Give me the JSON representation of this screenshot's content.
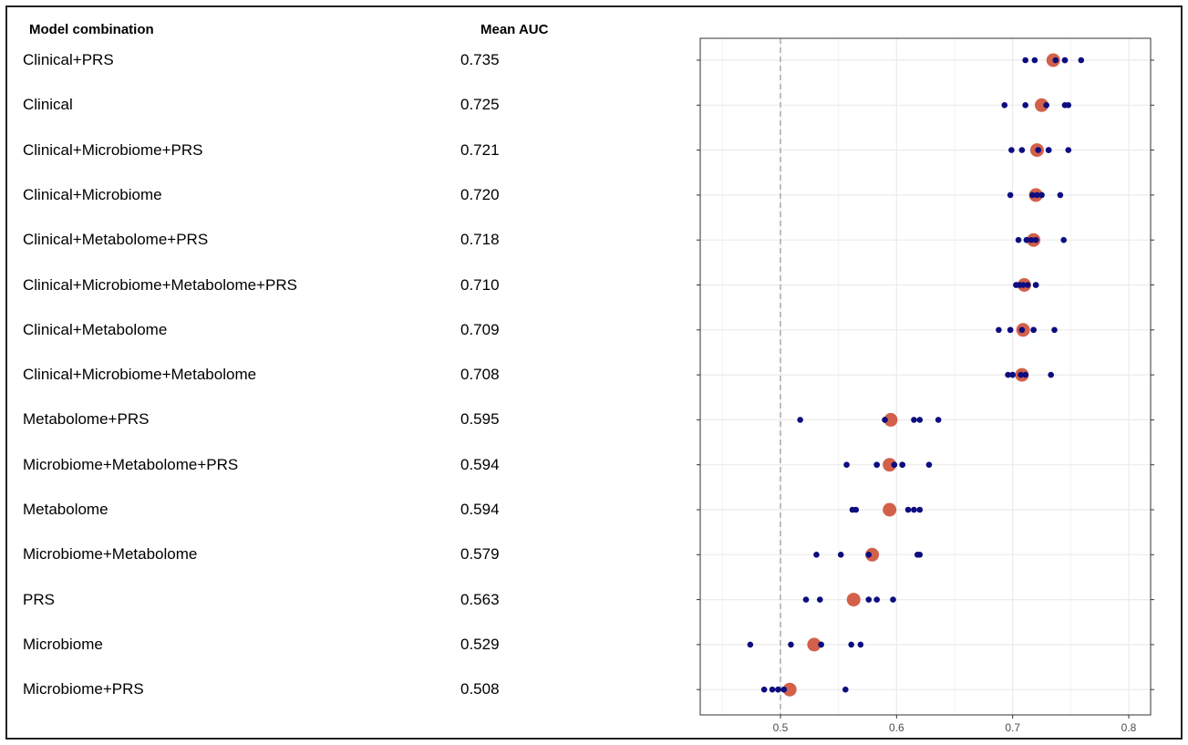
{
  "headers": {
    "model": "Model combination",
    "auc": "Mean AUC"
  },
  "rows": [
    {
      "label": "Clinical+PRS",
      "auc": "0.735"
    },
    {
      "label": "Clinical",
      "auc": "0.725"
    },
    {
      "label": "Clinical+Microbiome+PRS",
      "auc": "0.721"
    },
    {
      "label": "Clinical+Microbiome",
      "auc": "0.720"
    },
    {
      "label": "Clinical+Metabolome+PRS",
      "auc": "0.718"
    },
    {
      "label": "Clinical+Microbiome+Metabolome+PRS",
      "auc": "0.710"
    },
    {
      "label": "Clinical+Metabolome",
      "auc": "0.709"
    },
    {
      "label": "Clinical+Microbiome+Metabolome",
      "auc": "0.708"
    },
    {
      "label": "Metabolome+PRS",
      "auc": "0.595"
    },
    {
      "label": "Microbiome+Metabolome+PRS",
      "auc": "0.594"
    },
    {
      "label": "Metabolome",
      "auc": "0.594"
    },
    {
      "label": "Microbiome+Metabolome",
      "auc": "0.579"
    },
    {
      "label": "PRS",
      "auc": "0.563"
    },
    {
      "label": "Microbiome",
      "auc": "0.529"
    },
    {
      "label": "Microbiome+PRS",
      "auc": "0.508"
    }
  ],
  "chart_data": {
    "type": "scatter",
    "xlim": [
      0.44,
      0.82
    ],
    "xticks": [
      0.5,
      0.6,
      0.7,
      0.8
    ],
    "xtick_labels": [
      "0.5",
      "0.6",
      "0.7",
      "0.8"
    ],
    "reference_line": 0.5,
    "grid": true,
    "colors": {
      "mean": "#d2604a",
      "point": "#0d0d80",
      "grid": "#ebebeb",
      "reference": "#9e9e9e"
    },
    "categories": [
      "Clinical+PRS",
      "Clinical",
      "Clinical+Microbiome+PRS",
      "Clinical+Microbiome",
      "Clinical+Metabolome+PRS",
      "Clinical+Microbiome+Metabolome+PRS",
      "Clinical+Metabolome",
      "Clinical+Microbiome+Metabolome",
      "Metabolome+PRS",
      "Microbiome+Metabolome+PRS",
      "Metabolome",
      "Microbiome+Metabolome",
      "PRS",
      "Microbiome",
      "Microbiome+PRS"
    ],
    "means": [
      0.735,
      0.725,
      0.721,
      0.72,
      0.718,
      0.71,
      0.709,
      0.708,
      0.595,
      0.594,
      0.594,
      0.579,
      0.563,
      0.529,
      0.508
    ],
    "points": [
      [
        0.711,
        0.719,
        0.737,
        0.745,
        0.759
      ],
      [
        0.693,
        0.711,
        0.729,
        0.745,
        0.748
      ],
      [
        0.699,
        0.708,
        0.722,
        0.731,
        0.748
      ],
      [
        0.698,
        0.717,
        0.721,
        0.725,
        0.741
      ],
      [
        0.705,
        0.712,
        0.716,
        0.72,
        0.744
      ],
      [
        0.703,
        0.706,
        0.709,
        0.713,
        0.72
      ],
      [
        0.688,
        0.698,
        0.708,
        0.718,
        0.736
      ],
      [
        0.696,
        0.7,
        0.707,
        0.711,
        0.733
      ],
      [
        0.517,
        0.59,
        0.615,
        0.62,
        0.636
      ],
      [
        0.557,
        0.583,
        0.598,
        0.605,
        0.628
      ],
      [
        0.562,
        0.565,
        0.61,
        0.615,
        0.62
      ],
      [
        0.531,
        0.552,
        0.576,
        0.618,
        0.62
      ],
      [
        0.522,
        0.534,
        0.576,
        0.583,
        0.597
      ],
      [
        0.474,
        0.509,
        0.535,
        0.561,
        0.569
      ],
      [
        0.486,
        0.493,
        0.498,
        0.503,
        0.556
      ]
    ]
  }
}
